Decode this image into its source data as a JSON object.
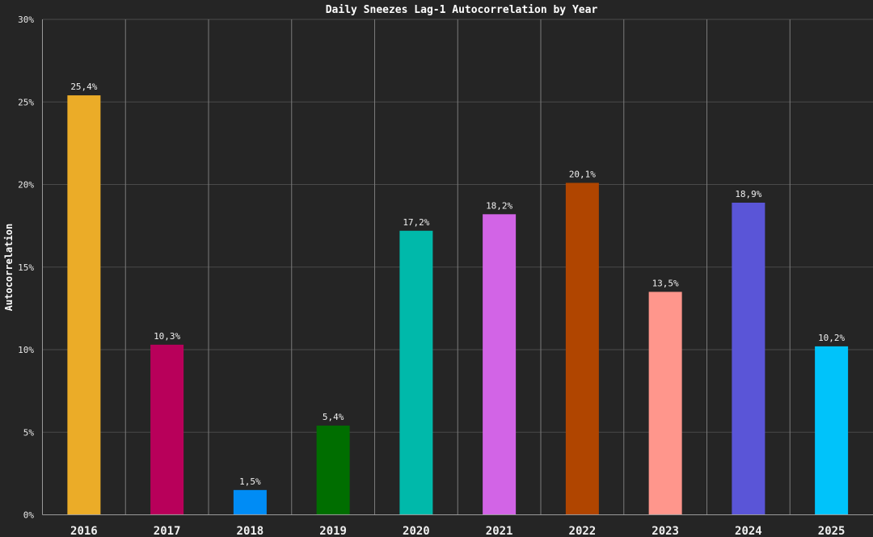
{
  "chart_data": {
    "type": "bar",
    "title": "Daily Sneezes Lag-1 Autocorrelation by Year",
    "xlabel": "",
    "ylabel": "Autocorrelation",
    "ylim": [
      0,
      30
    ],
    "yticks": [
      0,
      5,
      10,
      15,
      20,
      25,
      30
    ],
    "ytick_labels": [
      "0%",
      "5%",
      "10%",
      "15%",
      "20%",
      "25%",
      "30%"
    ],
    "grid": true,
    "categories": [
      "2016",
      "2017",
      "2018",
      "2019",
      "2020",
      "2021",
      "2022",
      "2023",
      "2024",
      "2025"
    ],
    "values": [
      25.4,
      10.3,
      1.5,
      5.4,
      17.2,
      18.2,
      20.1,
      13.5,
      18.9,
      10.2
    ],
    "data_labels": [
      "25,4%",
      "10,3%",
      "1,5%",
      "5,4%",
      "17,2%",
      "18,2%",
      "20,1%",
      "13,5%",
      "18,9%",
      "10,2%"
    ],
    "colors": [
      "#ebac28",
      "#b8005a",
      "#008cf5",
      "#006e00",
      "#00b9aa",
      "#d264e6",
      "#b04500",
      "#ff968c",
      "#5a55d7",
      "#00c3fa"
    ]
  }
}
